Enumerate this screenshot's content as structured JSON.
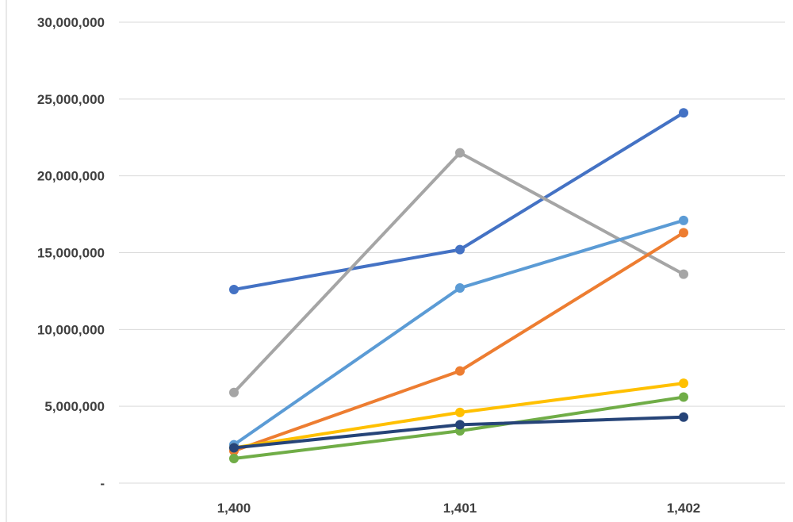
{
  "chart_data": {
    "type": "line",
    "title": "",
    "xlabel": "",
    "ylabel": "",
    "x": [
      "1,400",
      "1,401",
      "1,402"
    ],
    "ylim": [
      0,
      30000000
    ],
    "yticks": [
      {
        "value": 0,
        "label": "-"
      },
      {
        "value": 5000000,
        "label": "5,000,000"
      },
      {
        "value": 10000000,
        "label": "10,000,000"
      },
      {
        "value": 15000000,
        "label": "15,000,000"
      },
      {
        "value": 20000000,
        "label": "20,000,000"
      },
      {
        "value": 25000000,
        "label": "25,000,000"
      },
      {
        "value": 30000000,
        "label": "30,000,000"
      }
    ],
    "grid": true,
    "legend": "none",
    "series": [
      {
        "color": "#4472c4",
        "values": [
          12600000,
          15200000,
          24100000
        ]
      },
      {
        "color": "#a5a5a5",
        "values": [
          5900000,
          21500000,
          13600000
        ]
      },
      {
        "color": "#5b9bd5",
        "values": [
          2500000,
          12700000,
          17100000
        ]
      },
      {
        "color": "#ed7d31",
        "values": [
          2100000,
          7300000,
          16300000
        ]
      },
      {
        "color": "#ffc000",
        "values": [
          2300000,
          4600000,
          6500000
        ]
      },
      {
        "color": "#70ad47",
        "values": [
          1600000,
          3400000,
          5600000
        ]
      },
      {
        "color": "#264478",
        "values": [
          2300000,
          3800000,
          4300000
        ]
      }
    ]
  }
}
